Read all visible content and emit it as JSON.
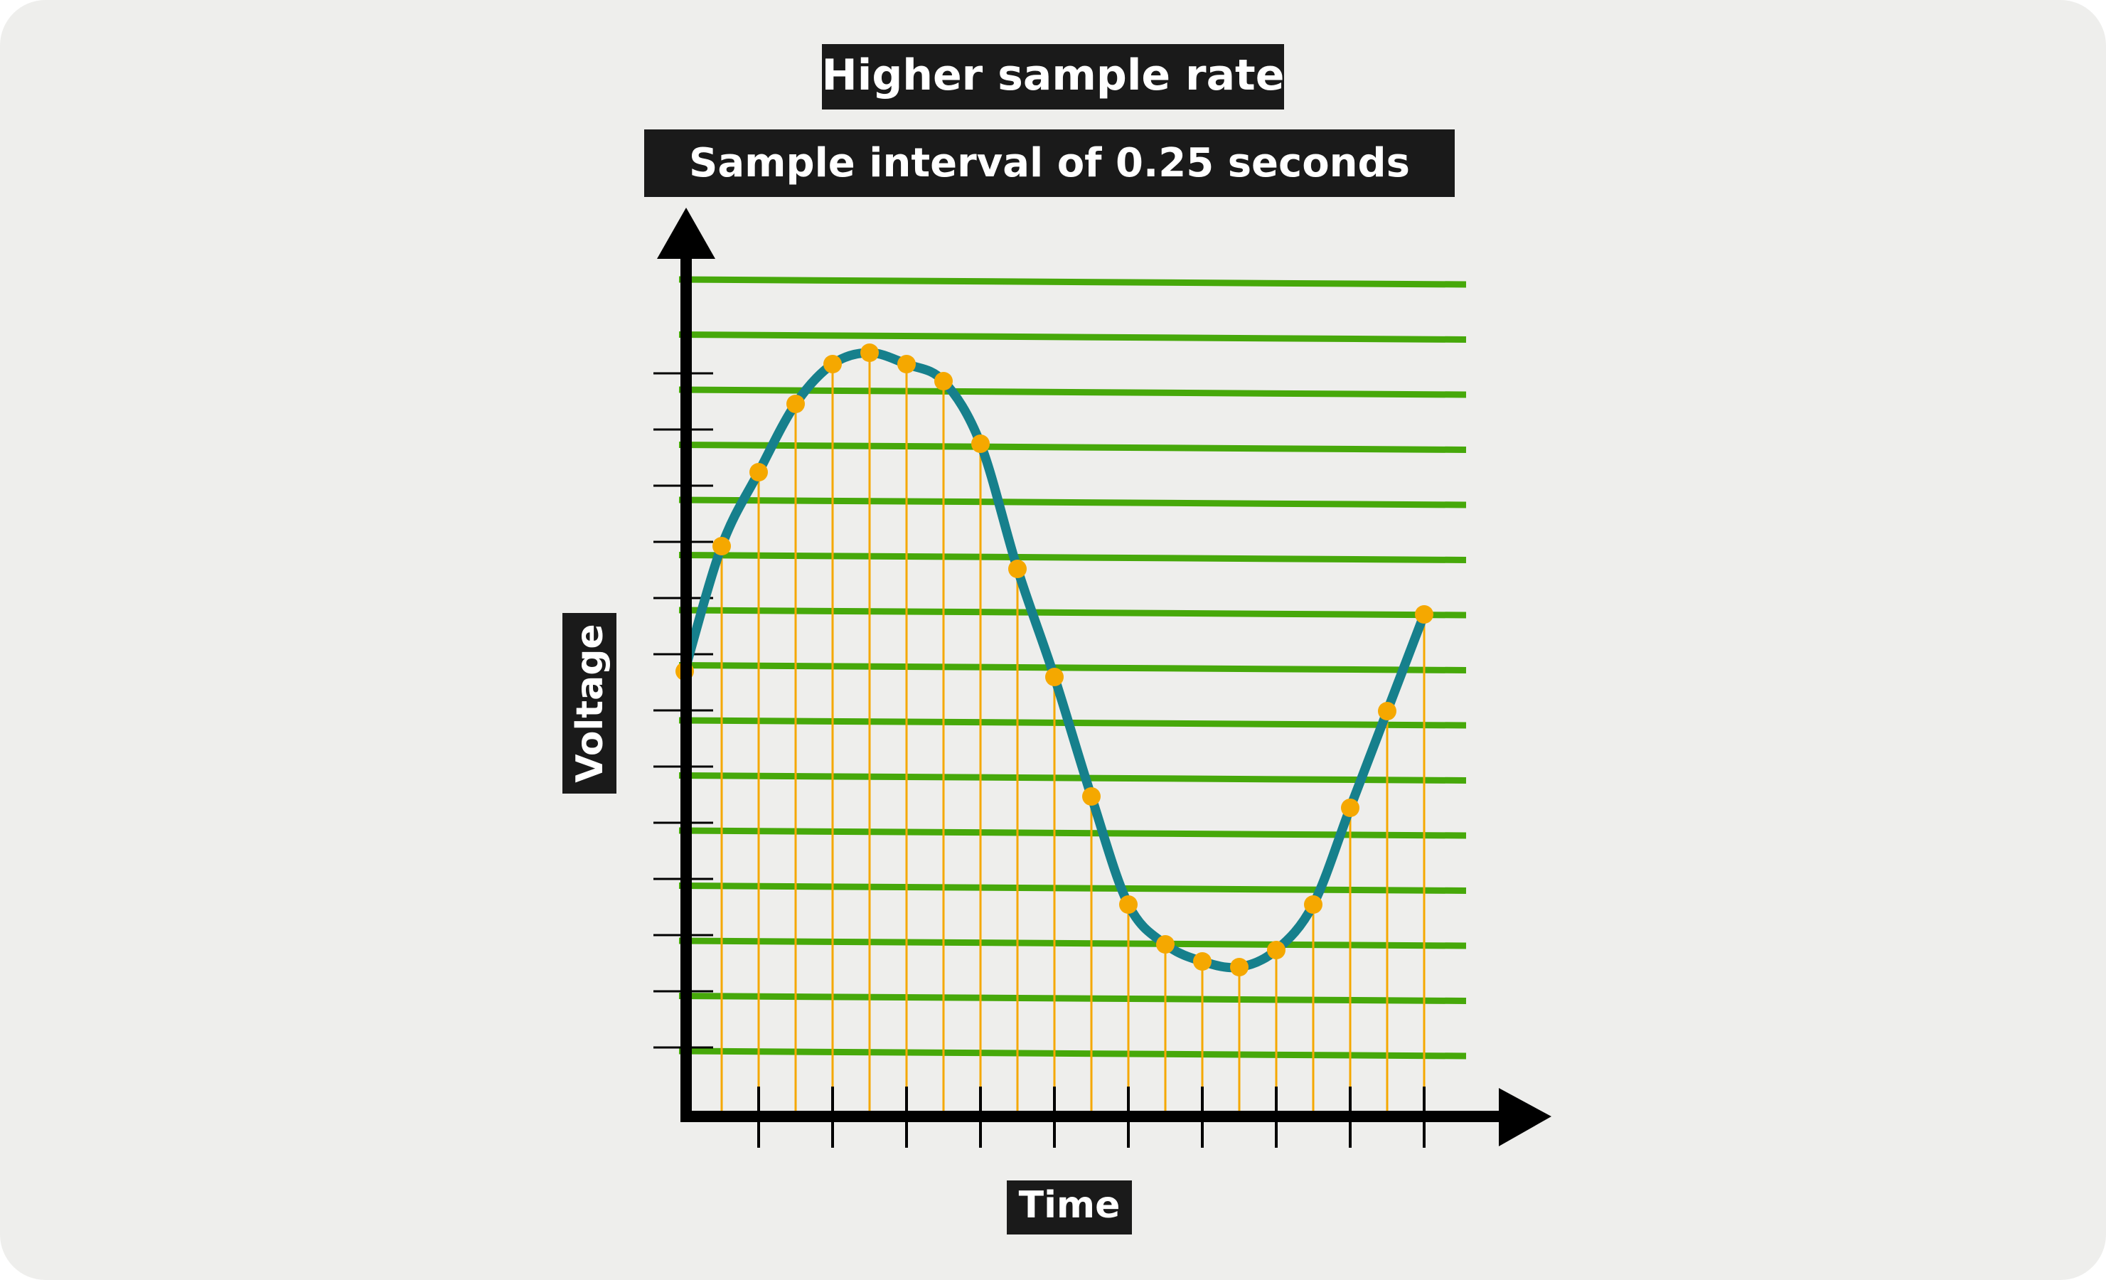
{
  "title": "Higher sample rate",
  "subtitle": "Sample interval of 0.25 seconds",
  "xlabel": "Time",
  "ylabel": "Voltage",
  "colors": {
    "background": "#eeeeec",
    "label_bg": "#1a1a1a",
    "label_text": "#ffffff",
    "axis": "#000000",
    "quantization_levels": "#46a80a",
    "signal": "#16808c",
    "samples": "#f5a800"
  },
  "chart_data": {
    "type": "line",
    "title": "Higher sample rate",
    "subtitle": "Sample interval of 0.25 seconds",
    "xlabel": "Time",
    "ylabel": "Voltage",
    "sample_interval_seconds": 0.25,
    "quantization_level_count": 15,
    "x_tick_count": 10,
    "y_tick_count": 13,
    "series": [
      {
        "type": "samples",
        "x": [
          0,
          0.25,
          0.5,
          0.75,
          1.0,
          1.25,
          1.5,
          1.75,
          2.0,
          2.25,
          2.5,
          2.75,
          3.0,
          3.25,
          3.5,
          3.75,
          4.0,
          4.25,
          4.5,
          4.75,
          5.0
        ],
        "y": [
          6.7,
          8.9,
          10.2,
          11.4,
          12.1,
          12.3,
          12.1,
          11.8,
          10.7,
          8.5,
          6.6,
          4.5,
          2.6,
          1.9,
          1.6,
          1.5,
          1.8,
          2.6,
          4.3,
          6.0,
          7.7
        ]
      }
    ]
  }
}
